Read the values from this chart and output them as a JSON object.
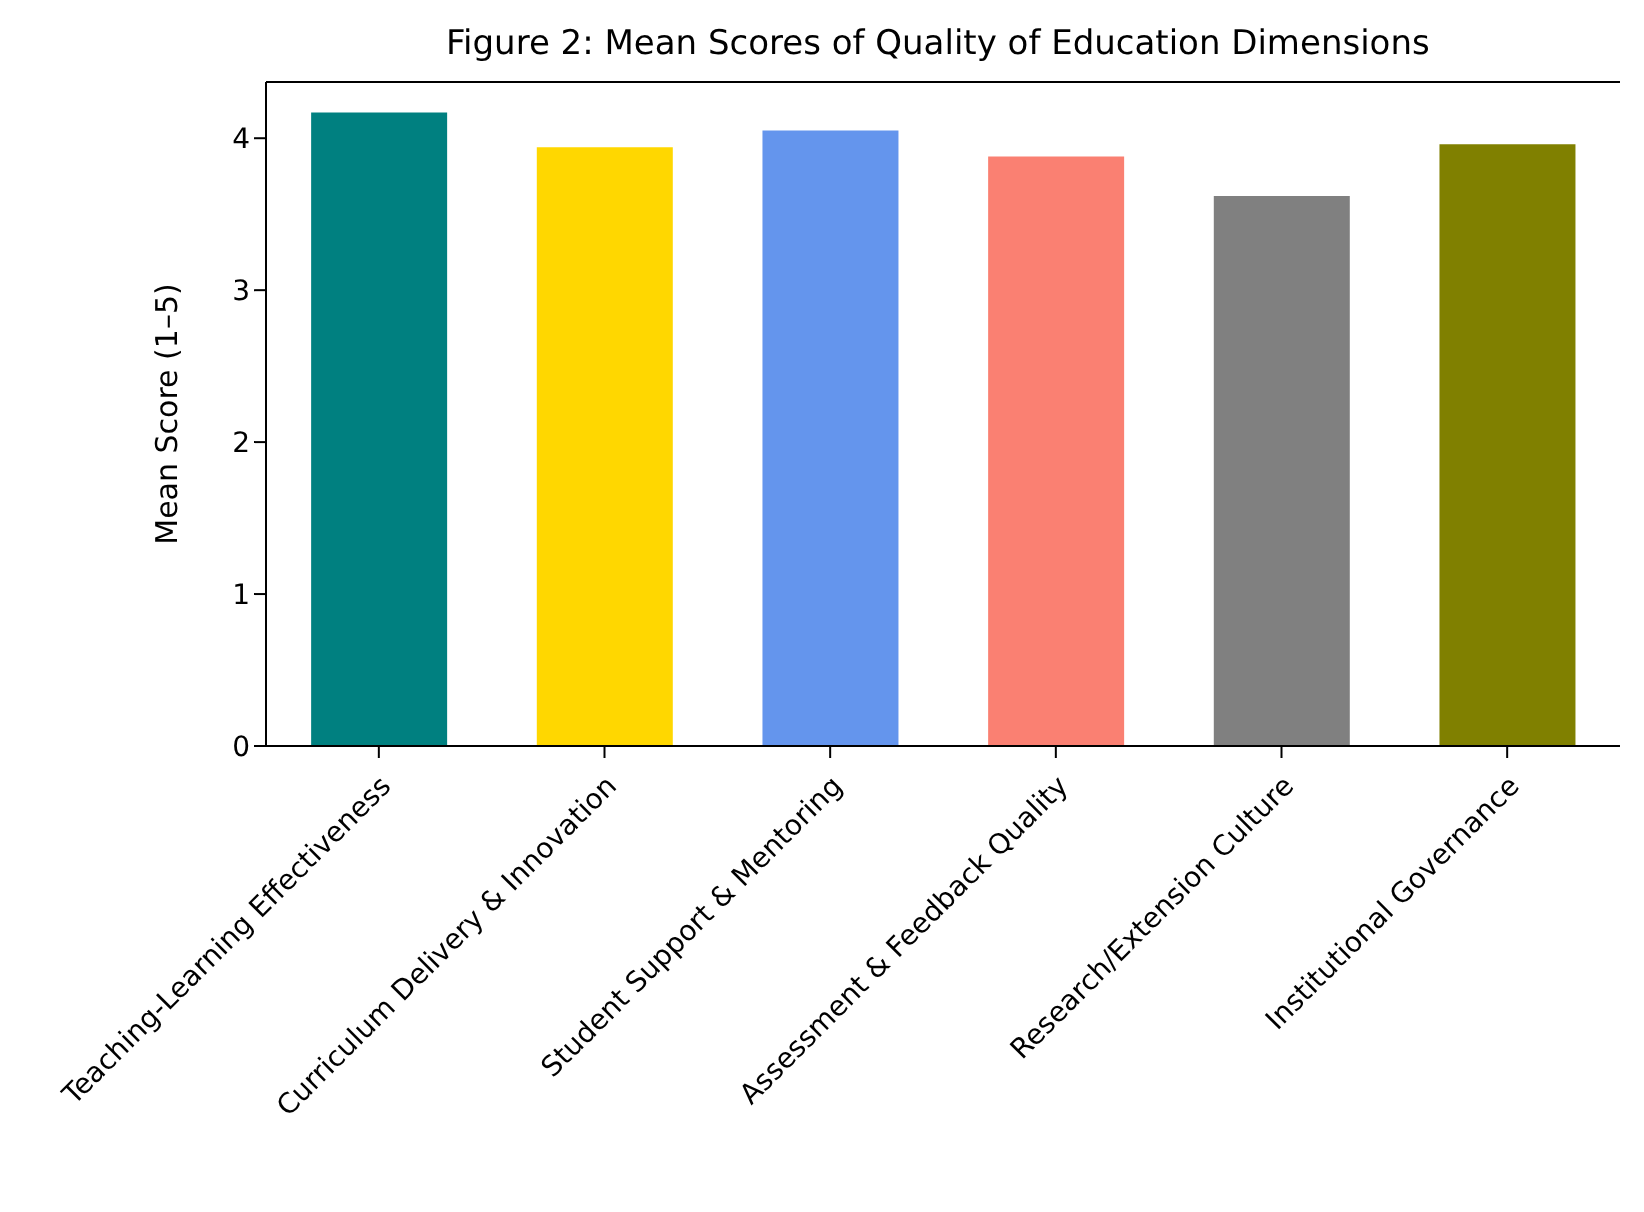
{
  "chart_data": {
    "type": "bar",
    "title": "Figure 2: Mean Scores of Quality of Education Dimensions",
    "ylabel": "Mean Score (1–5)",
    "categories": [
      "Teaching-Learning Effectiveness",
      "Curriculum Delivery & Innovation",
      "Student Support & Mentoring",
      "Assessment & Feedback Quality",
      "Research/Extension Culture",
      "Institutional Governance"
    ],
    "values": [
      4.17,
      3.94,
      4.05,
      3.88,
      3.62,
      3.96
    ],
    "colors": [
      "#008080",
      "#ffd700",
      "#6495ed",
      "#fa8072",
      "#808080",
      "#808000"
    ],
    "ylim": [
      0,
      4.37
    ],
    "yticks": [
      0,
      1,
      2,
      3,
      4
    ],
    "grid": false,
    "legend": false
  }
}
